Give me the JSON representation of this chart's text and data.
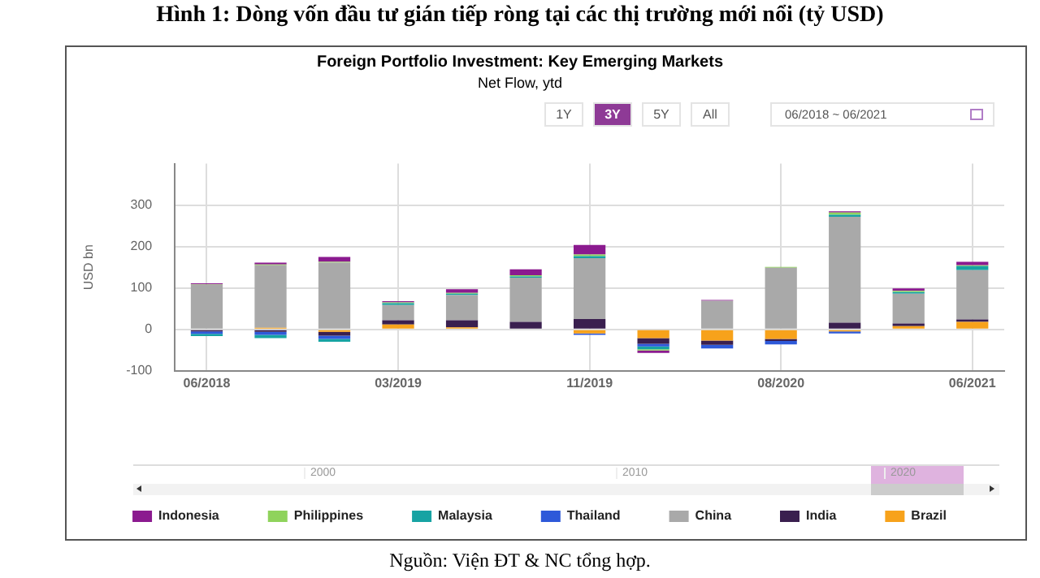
{
  "chart_data": {
    "type": "bar",
    "title": "Hình 1: Dòng vốn đầu tư gián tiếp ròng tại các thị trường mới nổi (tỷ USD)",
    "subtitle": "Foreign Portfolio Investment: Key Emerging Markets",
    "ylabel": "USD bn",
    "categories": [
      "06/2018",
      null,
      null,
      "03/2019",
      null,
      null,
      "11/2019",
      null,
      null,
      "08/2020",
      null,
      null,
      "06/2021"
    ],
    "series": [
      {
        "name": "Brazil",
        "color": "#f7a21b",
        "values": [
          null,
          4,
          -6,
          12,
          5,
          null,
          -10,
          -21,
          -27,
          -23,
          -5,
          8,
          18
        ]
      },
      {
        "name": "India",
        "color": "#3a1f4f",
        "values": [
          -5,
          -6,
          -9,
          10,
          17,
          18,
          25,
          -14,
          -10,
          -5,
          16,
          6,
          6
        ]
      },
      {
        "name": "China",
        "color": "#a9a9a9",
        "values": [
          108,
          151,
          161,
          37,
          61,
          107,
          147,
          0,
          69,
          149,
          256,
          72,
          119
        ]
      },
      {
        "name": "Thailand",
        "color": "#2e59d9",
        "values": [
          -6,
          -7,
          -8,
          0,
          0,
          -2,
          -3,
          -6,
          -9,
          -8,
          -5,
          0,
          0
        ]
      },
      {
        "name": "Malaysia",
        "color": "#17a3a3",
        "values": [
          -5,
          -8,
          -7,
          4,
          3,
          3,
          5,
          -7,
          0,
          0,
          5,
          4,
          10
        ]
      },
      {
        "name": "Philippines",
        "color": "#8fd35c",
        "values": [
          1,
          2,
          2,
          2,
          2,
          3,
          4,
          -3,
          0,
          2,
          5,
          3,
          2
        ]
      },
      {
        "name": "Indonesia",
        "color": "#8b1a8f",
        "values": [
          2,
          4,
          12,
          3,
          9,
          14,
          23,
          -6,
          2,
          0,
          3,
          6,
          8
        ]
      }
    ],
    "stacked": true,
    "ylim": [
      -100,
      400
    ],
    "yticks": [
      -100,
      0,
      100,
      200,
      300
    ],
    "grid": true,
    "legend": "bottom",
    "annotations": [
      "Net Flow, ytd",
      "1Y",
      "3Y",
      "5Y",
      "All",
      "06/2018 ~ 06/2021",
      "2000",
      "2010",
      "2020",
      "Nguồn: Viện ĐT & NC tổng hợp."
    ]
  }
}
